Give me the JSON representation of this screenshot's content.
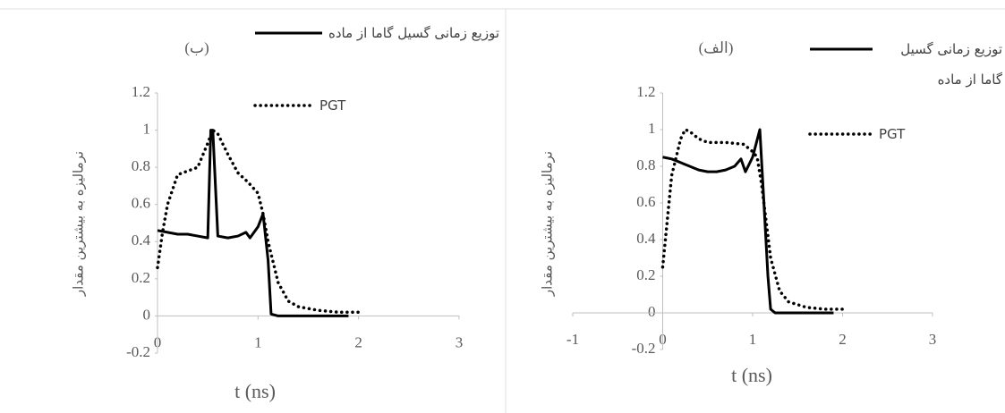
{
  "chart_data": [
    {
      "type": "line",
      "title": "(ب)",
      "x_label": "t (ns)",
      "y_label": "نرمالیزه به بیشترین مقدار",
      "xlim": [
        0,
        3
      ],
      "ylim": [
        -0.2,
        1.2
      ],
      "xticks": [
        0,
        1,
        2,
        3
      ],
      "yticks": [
        1.2,
        1,
        0.8,
        0.6,
        0.4,
        0.2,
        0,
        -0.2
      ],
      "series": [
        {
          "name": "توزیع زمانی گسیل گاما از ماده",
          "color": "#000000",
          "style": "solid",
          "x": [
            0,
            0.1,
            0.2,
            0.3,
            0.4,
            0.5,
            0.53,
            0.55,
            0.6,
            0.7,
            0.8,
            0.88,
            0.92,
            1.0,
            1.05,
            1.1,
            1.13,
            1.2,
            1.5,
            1.9
          ],
          "values": [
            0.46,
            0.45,
            0.44,
            0.44,
            0.43,
            0.42,
            1.0,
            1.0,
            0.43,
            0.42,
            0.43,
            0.45,
            0.42,
            0.48,
            0.55,
            0.3,
            0.01,
            0,
            0,
            0
          ]
        },
        {
          "name": "PGT",
          "color": "#000000",
          "style": "dotted",
          "x": [
            0,
            0.05,
            0.1,
            0.2,
            0.3,
            0.4,
            0.5,
            0.55,
            0.6,
            0.7,
            0.8,
            0.9,
            1.0,
            1.05,
            1.1,
            1.2,
            1.3,
            1.4,
            1.6,
            1.8,
            2.0
          ],
          "values": [
            0.26,
            0.45,
            0.6,
            0.76,
            0.78,
            0.8,
            0.93,
            1.0,
            0.98,
            0.87,
            0.77,
            0.72,
            0.66,
            0.55,
            0.4,
            0.18,
            0.08,
            0.05,
            0.03,
            0.02,
            0.02
          ]
        }
      ]
    },
    {
      "type": "line",
      "title": "(الف)",
      "x_label": "t (ns)",
      "y_label": "نرمالیزه به بیشترین مقدار",
      "xlim": [
        -1,
        3
      ],
      "ylim": [
        -0.2,
        1.2
      ],
      "xticks": [
        -1,
        0,
        1,
        2,
        3
      ],
      "yticks": [
        1.2,
        1,
        0.8,
        0.6,
        0.4,
        0.2,
        0,
        -0.2
      ],
      "series": [
        {
          "name": "توزیع زمانی گسیل گاما از ماده",
          "color": "#000000",
          "style": "solid",
          "x": [
            0,
            0.1,
            0.2,
            0.3,
            0.4,
            0.5,
            0.6,
            0.7,
            0.8,
            0.87,
            0.92,
            1.0,
            1.08,
            1.12,
            1.17,
            1.2,
            1.25,
            1.5,
            1.9
          ],
          "values": [
            0.85,
            0.84,
            0.82,
            0.8,
            0.78,
            0.77,
            0.77,
            0.78,
            0.8,
            0.84,
            0.77,
            0.85,
            1.0,
            0.65,
            0.2,
            0.02,
            0,
            0,
            0
          ]
        },
        {
          "name": "PGT",
          "color": "#000000",
          "style": "dotted",
          "x": [
            0,
            0.05,
            0.1,
            0.2,
            0.25,
            0.3,
            0.4,
            0.5,
            0.7,
            0.9,
            1.0,
            1.05,
            1.1,
            1.2,
            1.3,
            1.4,
            1.6,
            1.8,
            2.0
          ],
          "values": [
            0.25,
            0.5,
            0.75,
            0.95,
            1.0,
            0.99,
            0.95,
            0.93,
            0.93,
            0.92,
            0.88,
            0.85,
            0.7,
            0.3,
            0.12,
            0.06,
            0.03,
            0.02,
            0.02
          ]
        }
      ]
    }
  ]
}
